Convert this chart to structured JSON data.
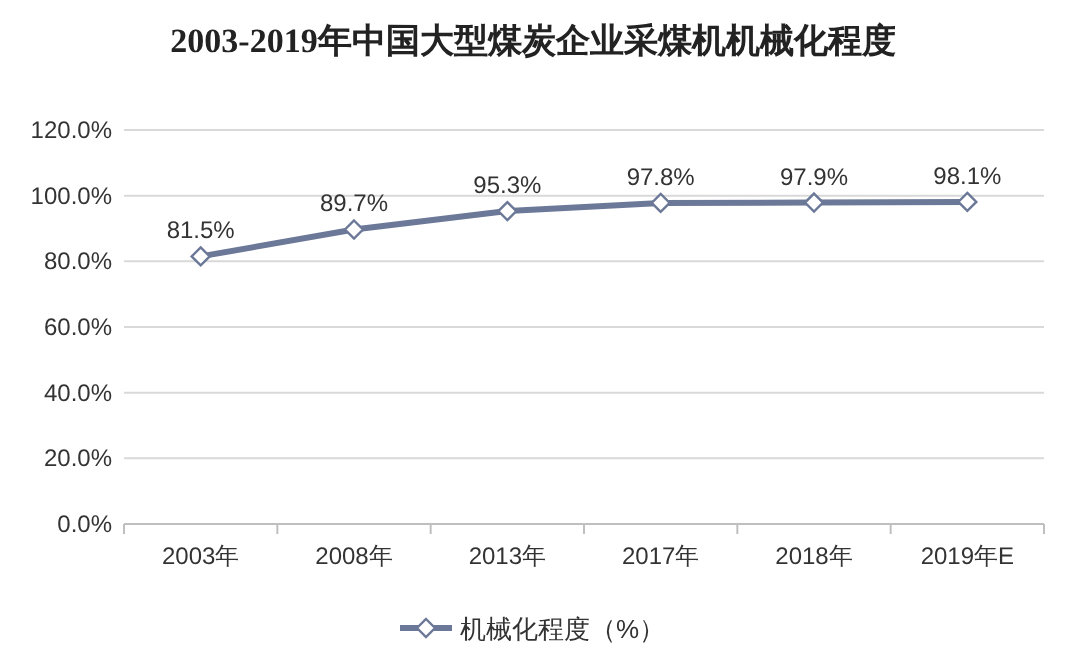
{
  "chart_data": {
    "type": "line",
    "title": "2003-2019年中国大型煤炭企业采煤机机械化程度",
    "categories": [
      "2003年",
      "2008年",
      "2013年",
      "2017年",
      "2018年",
      "2019年E"
    ],
    "series": [
      {
        "name": "机械化程度（%）",
        "color": "#6b7897",
        "values": [
          81.5,
          89.7,
          95.3,
          97.8,
          97.9,
          98.1
        ],
        "value_labels": [
          "81.5%",
          "89.7%",
          "95.3%",
          "97.8%",
          "97.9%",
          "98.1%"
        ]
      }
    ],
    "ylim": [
      0,
      120
    ],
    "yticks": [
      {
        "value": 0,
        "label": "0.0%"
      },
      {
        "value": 20,
        "label": "20.0%"
      },
      {
        "value": 40,
        "label": "40.0%"
      },
      {
        "value": 60,
        "label": "60.0%"
      },
      {
        "value": 80,
        "label": "80.0%"
      },
      {
        "value": 100,
        "label": "100.0%"
      },
      {
        "value": 120,
        "label": "120.0%"
      }
    ],
    "grid": "y",
    "legend": "bottom",
    "marker": "diamond",
    "line_style": "solid"
  }
}
